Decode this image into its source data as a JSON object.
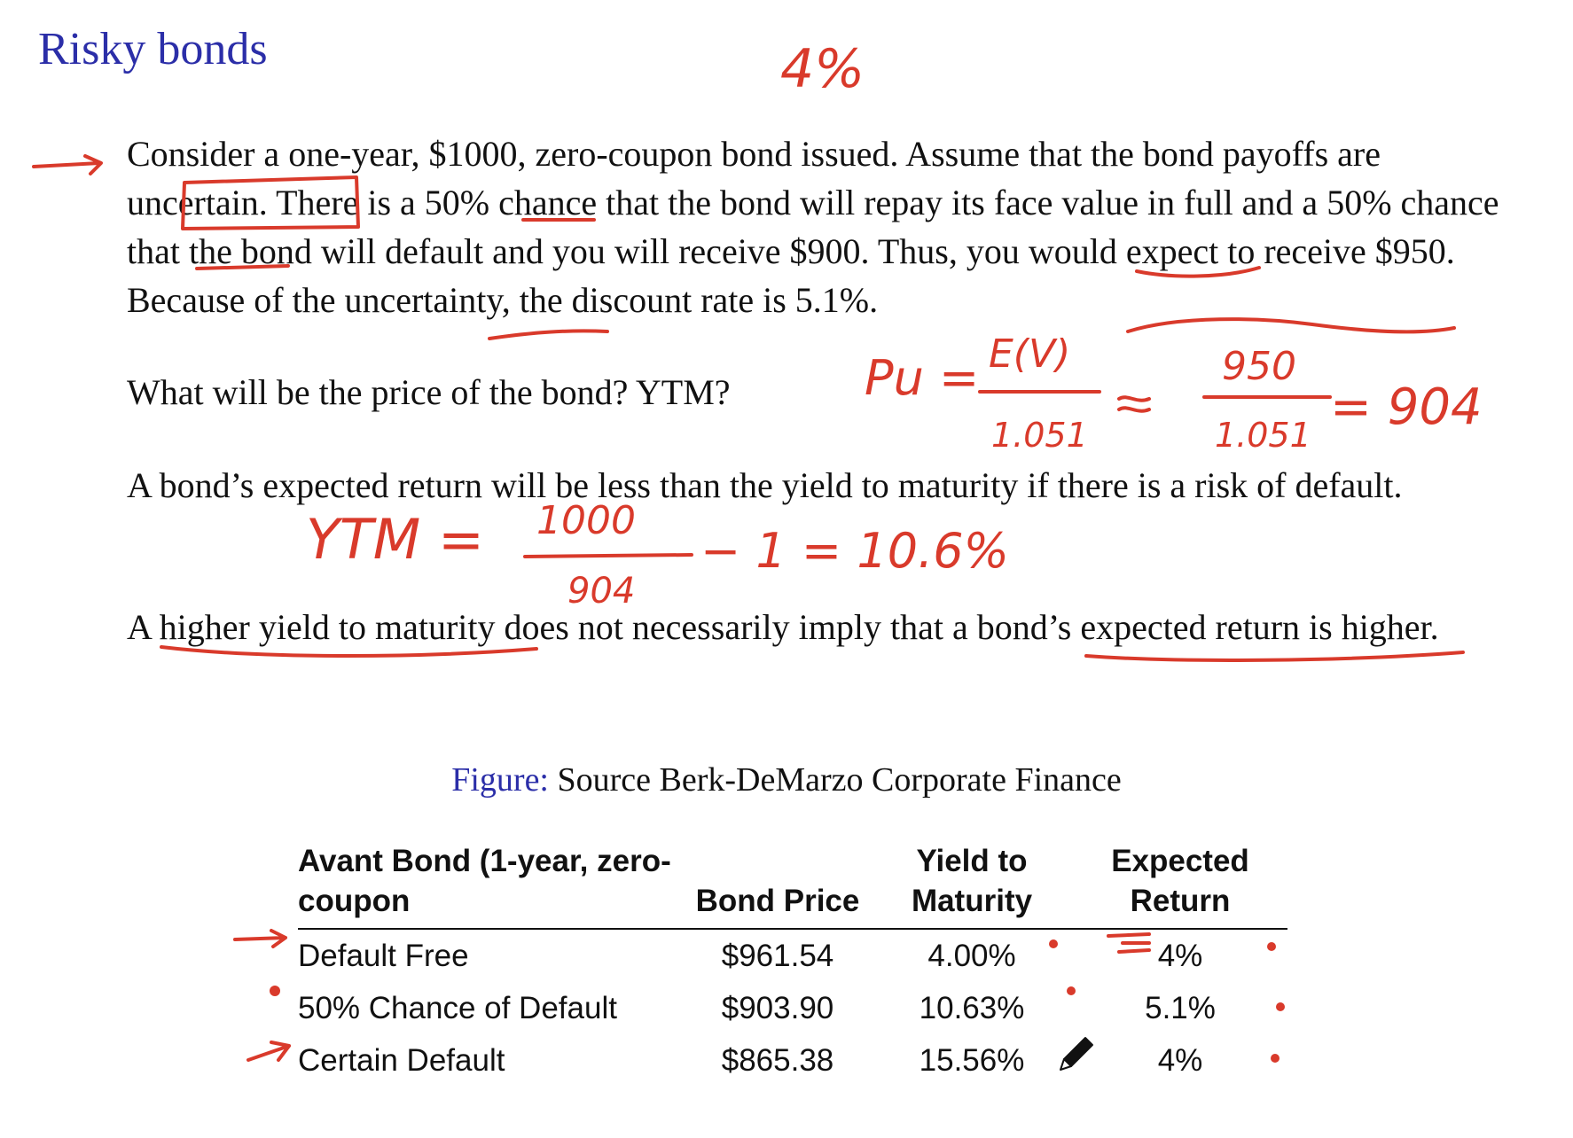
{
  "slide": {
    "title": "Risky bonds",
    "paragraphs": {
      "p1": {
        "a": "Consider a one-year, $1000, zero-coupon bond issued. Assume that the bond payoffs are ",
        "b": "uncertain.",
        "c": " There is a 50% chance that the bond will repay its face value in full and a 50% chance that the bond will default and you will receive $900. Thus, you would expect to receive $950. Because of the uncertainty, the discount rate is 5.1%."
      },
      "p2": "What will be the price of the bond? YTM?",
      "p3": "A bond’s expected return will be less than the yield to maturity if there is a risk of default.",
      "p4": "A higher yield to maturity does not necessarily imply that a bond’s expected return is higher."
    },
    "caption": {
      "label": "Figure:",
      "text": " Source Berk-DeMarzo Corporate Finance"
    }
  },
  "table": {
    "headers": {
      "bond": "Avant Bond (1-year, zero-coupon",
      "price": "Bond Price",
      "ytm": "Yield to Maturity",
      "expected": "Expected Return"
    },
    "rows": [
      {
        "bond": "Default Free",
        "price": "$961.54",
        "ytm": "4.00%",
        "expected": "4%"
      },
      {
        "bond": "50% Chance of Default",
        "price": "$903.90",
        "ytm": "10.63%",
        "expected": "5.1%"
      },
      {
        "bond": "Certain Default",
        "price": "$865.38",
        "ytm": "15.56%",
        "expected": "4%"
      }
    ]
  },
  "annotations": {
    "top_note": "4%",
    "price_formula": {
      "lhs": "Pu =",
      "num1": "E(V)",
      "den1": "1.051",
      "num2": "950",
      "den2": "1.051",
      "result": "= 904"
    },
    "ytm_formula": {
      "lhs": "YTM =",
      "num": "1000",
      "den": "904",
      "result": "− 1 = 10.6%"
    },
    "ink_color": "#d93a2b"
  },
  "colors": {
    "title": "#2b2ea8",
    "figure_label": "#2b2ea8",
    "text": "#111111"
  },
  "icons": [
    "pencil-icon"
  ]
}
